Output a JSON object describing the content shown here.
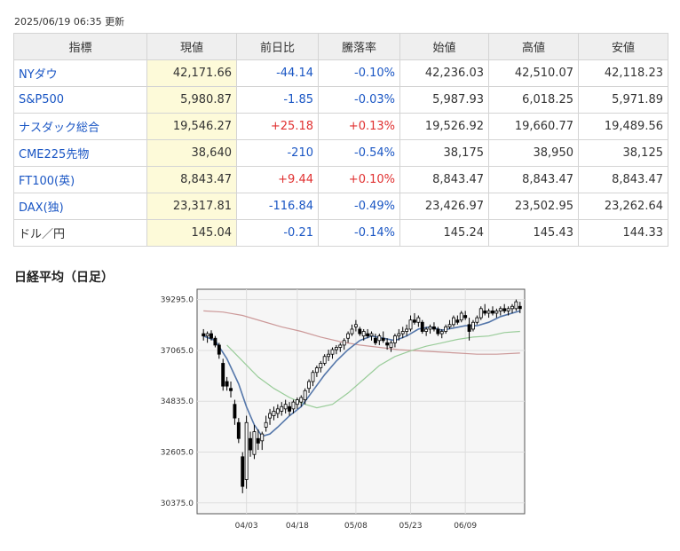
{
  "timestamp": "2025/06/19 06:35 更新",
  "table": {
    "headers": [
      "指標",
      "現値",
      "前日比",
      "騰落率",
      "始値",
      "高値",
      "安値"
    ],
    "rows": [
      {
        "name": "NYダウ",
        "price": "42,171.66",
        "change": "-44.14",
        "pct": "-0.10%",
        "open": "42,236.03",
        "high": "42,510.07",
        "low": "42,118.23",
        "dir": "neg",
        "link": true
      },
      {
        "name": "S&P500",
        "price": "5,980.87",
        "change": "-1.85",
        "pct": "-0.03%",
        "open": "5,987.93",
        "high": "6,018.25",
        "low": "5,971.89",
        "dir": "neg",
        "link": true
      },
      {
        "name": "ナスダック総合",
        "price": "19,546.27",
        "change": "+25.18",
        "pct": "+0.13%",
        "open": "19,526.92",
        "high": "19,660.77",
        "low": "19,489.56",
        "dir": "pos",
        "link": true
      },
      {
        "name": "CME225先物",
        "price": "38,640",
        "change": "-210",
        "pct": "-0.54%",
        "open": "38,175",
        "high": "38,950",
        "low": "38,125",
        "dir": "neg",
        "link": true
      },
      {
        "name": "FT100(英)",
        "price": "8,843.47",
        "change": "+9.44",
        "pct": "+0.10%",
        "open": "8,843.47",
        "high": "8,843.47",
        "low": "8,843.47",
        "dir": "pos",
        "link": true
      },
      {
        "name": "DAX(独)",
        "price": "23,317.81",
        "change": "-116.84",
        "pct": "-0.49%",
        "open": "23,426.97",
        "high": "23,502.95",
        "low": "23,262.64",
        "dir": "neg",
        "link": true
      },
      {
        "name": "ドル／円",
        "price": "145.04",
        "change": "-0.21",
        "pct": "-0.14%",
        "open": "145.24",
        "high": "145.43",
        "low": "144.33",
        "dir": "neg",
        "link": false
      }
    ]
  },
  "chart_title": "日経平均（日足）",
  "chart_data": {
    "type": "line",
    "title": "",
    "y_ticks": [
      "39295.0",
      "37065.0",
      "34835.0",
      "32605.0",
      "30375.0"
    ],
    "y_tick_values": [
      39295,
      37065,
      34835,
      32605,
      30375
    ],
    "ylim": [
      29900,
      39750
    ],
    "x_ticks": [
      "04/03",
      "04/18",
      "05/08",
      "05/23",
      "06/09"
    ],
    "x_tick_index": [
      11,
      24,
      39,
      53,
      67
    ],
    "n_days": 82,
    "candles": [
      [
        37800,
        38000,
        37500,
        37700
      ],
      [
        37700,
        37900,
        37400,
        37800
      ],
      [
        37800,
        37950,
        37500,
        37600
      ],
      [
        37600,
        37700,
        37200,
        37300
      ],
      [
        37300,
        37400,
        36700,
        36900
      ],
      [
        36500,
        36700,
        35300,
        35500
      ],
      [
        35700,
        35900,
        35300,
        35500
      ],
      [
        35400,
        35700,
        35000,
        35300
      ],
      [
        34700,
        34900,
        33800,
        34100
      ],
      [
        33900,
        34100,
        33000,
        33200
      ],
      [
        32400,
        32600,
        30800,
        31100
      ],
      [
        31400,
        34200,
        31000,
        33900
      ],
      [
        33200,
        33500,
        32400,
        32700
      ],
      [
        32500,
        33800,
        32300,
        33500
      ],
      [
        33200,
        33600,
        32700,
        33000
      ],
      [
        33100,
        33500,
        32700,
        33400
      ],
      [
        33700,
        34200,
        33500,
        33900
      ],
      [
        34100,
        34500,
        33800,
        34300
      ],
      [
        34200,
        34600,
        34000,
        34400
      ],
      [
        34300,
        34700,
        34100,
        34500
      ],
      [
        34400,
        34800,
        34200,
        34600
      ],
      [
        34500,
        34900,
        34300,
        34700
      ],
      [
        34600,
        34800,
        34200,
        34400
      ],
      [
        34500,
        34900,
        34300,
        34800
      ],
      [
        34700,
        35000,
        34500,
        34900
      ],
      [
        34800,
        35100,
        34600,
        35000
      ],
      [
        34900,
        35400,
        34700,
        35300
      ],
      [
        35400,
        35800,
        35200,
        35700
      ],
      [
        35700,
        36200,
        35500,
        36100
      ],
      [
        36100,
        36400,
        35900,
        36300
      ],
      [
        36300,
        36600,
        36100,
        36500
      ],
      [
        36500,
        36900,
        36400,
        36800
      ],
      [
        36800,
        37100,
        36600,
        36900
      ],
      [
        36900,
        37200,
        36700,
        37100
      ],
      [
        37100,
        37300,
        36900,
        37200
      ],
      [
        37200,
        37400,
        37000,
        37300
      ],
      [
        37300,
        37600,
        37100,
        37500
      ],
      [
        37600,
        37900,
        37400,
        37800
      ],
      [
        37800,
        38200,
        37700,
        38000
      ],
      [
        38100,
        38400,
        37900,
        38200
      ],
      [
        38000,
        38100,
        37700,
        37800
      ],
      [
        37700,
        38000,
        37500,
        37900
      ],
      [
        37800,
        38000,
        37600,
        37700
      ],
      [
        37700,
        37900,
        37500,
        37800
      ],
      [
        37600,
        37800,
        37300,
        37400
      ],
      [
        37500,
        37800,
        37300,
        37700
      ],
      [
        37600,
        37900,
        37400,
        37500
      ],
      [
        37400,
        37600,
        37100,
        37300
      ],
      [
        37200,
        37500,
        37000,
        37400
      ],
      [
        37400,
        37800,
        37200,
        37700
      ],
      [
        37700,
        38000,
        37500,
        37800
      ],
      [
        37800,
        38100,
        37600,
        37900
      ],
      [
        37900,
        38200,
        37700,
        38000
      ],
      [
        38000,
        38600,
        37900,
        38400
      ],
      [
        38400,
        38700,
        38200,
        38300
      ],
      [
        38300,
        38600,
        38100,
        38500
      ],
      [
        38300,
        38400,
        37800,
        37900
      ],
      [
        37900,
        38100,
        37700,
        38000
      ],
      [
        38000,
        38200,
        37800,
        38100
      ],
      [
        38100,
        38300,
        37900,
        38000
      ],
      [
        38000,
        38100,
        37700,
        37800
      ],
      [
        37800,
        38000,
        37600,
        37900
      ],
      [
        37900,
        38200,
        37800,
        38100
      ],
      [
        38100,
        38400,
        38000,
        38200
      ],
      [
        38200,
        38600,
        38100,
        38500
      ],
      [
        38400,
        38600,
        38200,
        38300
      ],
      [
        38400,
        38800,
        38300,
        38700
      ],
      [
        38600,
        38800,
        38400,
        38500
      ],
      [
        38200,
        38500,
        37500,
        37900
      ],
      [
        38000,
        38400,
        37900,
        38300
      ],
      [
        38300,
        38600,
        38200,
        38500
      ],
      [
        38500,
        39000,
        38400,
        38900
      ],
      [
        38800,
        39100,
        38600,
        38700
      ],
      [
        38700,
        38900,
        38500,
        38800
      ],
      [
        38800,
        39000,
        38600,
        38700
      ],
      [
        38700,
        38900,
        38500,
        38800
      ],
      [
        38800,
        39000,
        38600,
        38900
      ],
      [
        38900,
        39100,
        38700,
        38800
      ],
      [
        38800,
        39000,
        38600,
        38900
      ],
      [
        38900,
        39100,
        38700,
        39000
      ],
      [
        38900,
        39300,
        38800,
        39200
      ],
      [
        39000,
        39200,
        38700,
        38900
      ]
    ],
    "ma_short": [
      [
        0,
        37700
      ],
      [
        3,
        37500
      ],
      [
        6,
        36700
      ],
      [
        9,
        35600
      ],
      [
        11,
        34600
      ],
      [
        13,
        33800
      ],
      [
        15,
        33300
      ],
      [
        17,
        33400
      ],
      [
        19,
        33700
      ],
      [
        22,
        34200
      ],
      [
        25,
        34600
      ],
      [
        28,
        35300
      ],
      [
        31,
        36000
      ],
      [
        34,
        36600
      ],
      [
        37,
        37100
      ],
      [
        40,
        37500
      ],
      [
        43,
        37700
      ],
      [
        46,
        37600
      ],
      [
        49,
        37500
      ],
      [
        52,
        37700
      ],
      [
        55,
        38000
      ],
      [
        58,
        38100
      ],
      [
        61,
        37950
      ],
      [
        64,
        38050
      ],
      [
        67,
        38150
      ],
      [
        70,
        38150
      ],
      [
        73,
        38300
      ],
      [
        76,
        38550
      ],
      [
        81,
        38800
      ]
    ],
    "ma_mid": [
      [
        6,
        37300
      ],
      [
        10,
        36600
      ],
      [
        14,
        35900
      ],
      [
        18,
        35400
      ],
      [
        22,
        35000
      ],
      [
        26,
        34700
      ],
      [
        29,
        34550
      ],
      [
        33,
        34700
      ],
      [
        37,
        35200
      ],
      [
        41,
        35800
      ],
      [
        45,
        36400
      ],
      [
        49,
        36800
      ],
      [
        53,
        37050
      ],
      [
        57,
        37250
      ],
      [
        61,
        37400
      ],
      [
        65,
        37550
      ],
      [
        69,
        37650
      ],
      [
        73,
        37700
      ],
      [
        77,
        37850
      ],
      [
        81,
        37900
      ]
    ],
    "ma_long": [
      [
        0,
        38800
      ],
      [
        5,
        38750
      ],
      [
        10,
        38600
      ],
      [
        15,
        38350
      ],
      [
        20,
        38100
      ],
      [
        25,
        37900
      ],
      [
        30,
        37650
      ],
      [
        35,
        37450
      ],
      [
        40,
        37300
      ],
      [
        45,
        37200
      ],
      [
        50,
        37100
      ],
      [
        55,
        37050
      ],
      [
        60,
        37000
      ],
      [
        65,
        36950
      ],
      [
        70,
        36900
      ],
      [
        75,
        36900
      ],
      [
        81,
        36950
      ]
    ],
    "colors": {
      "ma_short": "#5577aa",
      "ma_mid": "#99cc99",
      "ma_long": "#cc9999",
      "plot_bg": "#f6f6f6"
    }
  }
}
